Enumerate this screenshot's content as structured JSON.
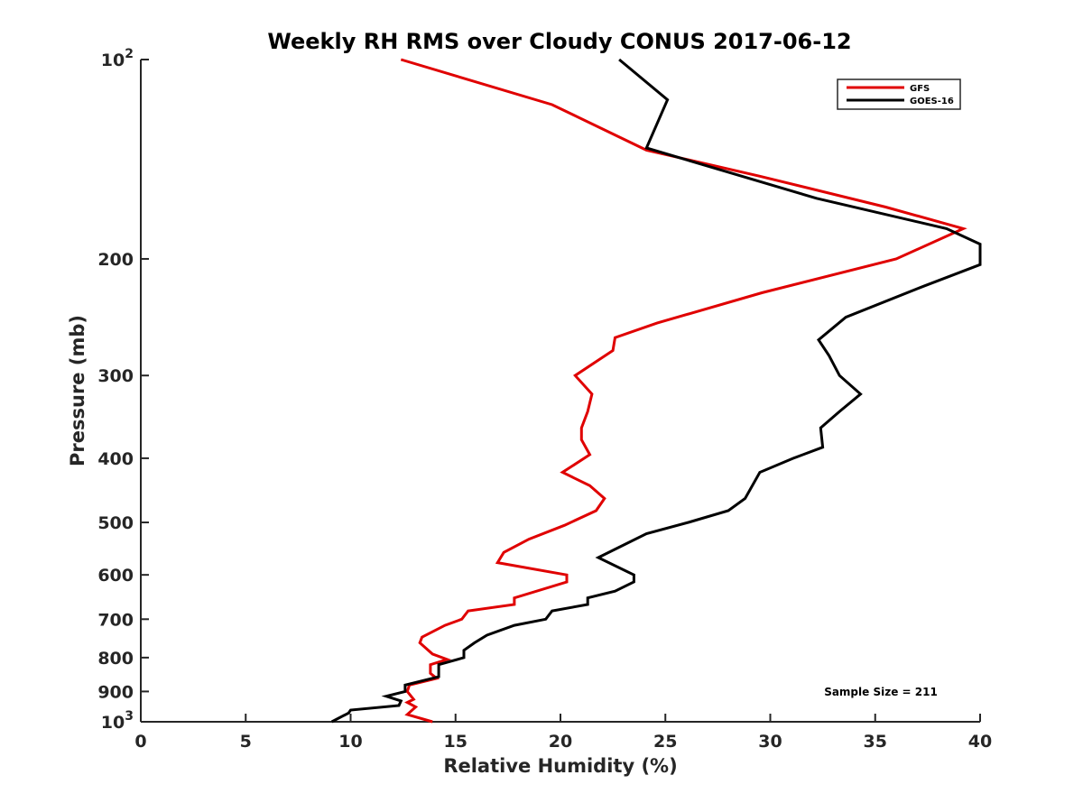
{
  "chart_data": {
    "type": "line",
    "title": "Weekly RH RMS over Cloudy CONUS 2017-06-12",
    "xlabel": "Relative Humidity (%)",
    "ylabel": "Pressure (mb)",
    "xlim": [
      0,
      40
    ],
    "ylim": [
      1000,
      100
    ],
    "y_scale": "log",
    "y_reversed": true,
    "grid": false,
    "legend_position": "top-right",
    "x_ticks": [
      0,
      5,
      10,
      15,
      20,
      25,
      30,
      35,
      40
    ],
    "x_tick_labels": [
      "0",
      "5",
      "10",
      "15",
      "20",
      "25",
      "30",
      "35",
      "40"
    ],
    "y_ticks": [
      100,
      200,
      300,
      400,
      500,
      600,
      700,
      800,
      900,
      1000
    ],
    "y_tick_labels": [
      {
        "base": "10",
        "exp": "2"
      },
      {
        "base": "200",
        "exp": ""
      },
      {
        "base": "300",
        "exp": ""
      },
      {
        "base": "400",
        "exp": ""
      },
      {
        "base": "500",
        "exp": ""
      },
      {
        "base": "600",
        "exp": ""
      },
      {
        "base": "700",
        "exp": ""
      },
      {
        "base": "800",
        "exp": ""
      },
      {
        "base": "900",
        "exp": ""
      },
      {
        "base": "10",
        "exp": "3"
      }
    ],
    "annotation": "Sample Size = 211",
    "series": [
      {
        "name": "GFS",
        "color": "#e00000",
        "points": [
          [
            12.4,
            100
          ],
          [
            19.6,
            117
          ],
          [
            24.1,
            137
          ],
          [
            29.5,
            150
          ],
          [
            35.5,
            167
          ],
          [
            39.2,
            180
          ],
          [
            36.0,
            200
          ],
          [
            29.6,
            225
          ],
          [
            24.6,
            250
          ],
          [
            22.6,
            263
          ],
          [
            22.5,
            275
          ],
          [
            20.7,
            300
          ],
          [
            21.5,
            320
          ],
          [
            21.3,
            340
          ],
          [
            21.0,
            360
          ],
          [
            21.0,
            375
          ],
          [
            21.4,
            395
          ],
          [
            20.1,
            420
          ],
          [
            21.4,
            440
          ],
          [
            22.1,
            460
          ],
          [
            21.7,
            480
          ],
          [
            20.2,
            505
          ],
          [
            18.5,
            530
          ],
          [
            17.3,
            555
          ],
          [
            17.0,
            575
          ],
          [
            20.3,
            600
          ],
          [
            20.3,
            615
          ],
          [
            17.8,
            650
          ],
          [
            17.8,
            665
          ],
          [
            15.6,
            680
          ],
          [
            15.3,
            700
          ],
          [
            14.5,
            715
          ],
          [
            13.4,
            745
          ],
          [
            13.3,
            760
          ],
          [
            13.9,
            790
          ],
          [
            14.6,
            805
          ],
          [
            13.8,
            820
          ],
          [
            13.8,
            845
          ],
          [
            14.1,
            860
          ],
          [
            12.8,
            880
          ],
          [
            12.7,
            900
          ],
          [
            13.0,
            925
          ],
          [
            12.7,
            935
          ],
          [
            13.1,
            950
          ],
          [
            12.7,
            975
          ],
          [
            13.9,
            1000
          ]
        ]
      },
      {
        "name": "GOES-16",
        "color": "#000000",
        "points": [
          [
            22.8,
            100
          ],
          [
            25.1,
            115
          ],
          [
            24.1,
            136
          ],
          [
            32.2,
            162
          ],
          [
            38.4,
            180
          ],
          [
            40.0,
            190
          ],
          [
            40.0,
            204
          ],
          [
            37.3,
            220
          ],
          [
            33.6,
            245
          ],
          [
            32.3,
            265
          ],
          [
            32.8,
            280
          ],
          [
            33.3,
            300
          ],
          [
            34.3,
            320
          ],
          [
            33.3,
            340
          ],
          [
            32.4,
            360
          ],
          [
            32.5,
            385
          ],
          [
            31.1,
            400
          ],
          [
            29.5,
            420
          ],
          [
            28.8,
            460
          ],
          [
            28.0,
            480
          ],
          [
            26.1,
            500
          ],
          [
            24.1,
            520
          ],
          [
            22.8,
            545
          ],
          [
            21.8,
            565
          ],
          [
            23.5,
            600
          ],
          [
            23.5,
            615
          ],
          [
            22.6,
            635
          ],
          [
            21.3,
            650
          ],
          [
            21.3,
            665
          ],
          [
            19.6,
            680
          ],
          [
            19.3,
            700
          ],
          [
            17.8,
            715
          ],
          [
            16.5,
            740
          ],
          [
            15.9,
            760
          ],
          [
            15.4,
            780
          ],
          [
            15.4,
            800
          ],
          [
            14.2,
            820
          ],
          [
            14.2,
            855
          ],
          [
            12.6,
            880
          ],
          [
            12.6,
            900
          ],
          [
            11.7,
            915
          ],
          [
            12.4,
            930
          ],
          [
            12.3,
            945
          ],
          [
            10.0,
            960
          ],
          [
            9.9,
            970
          ],
          [
            9.1,
            1000
          ]
        ]
      }
    ]
  }
}
